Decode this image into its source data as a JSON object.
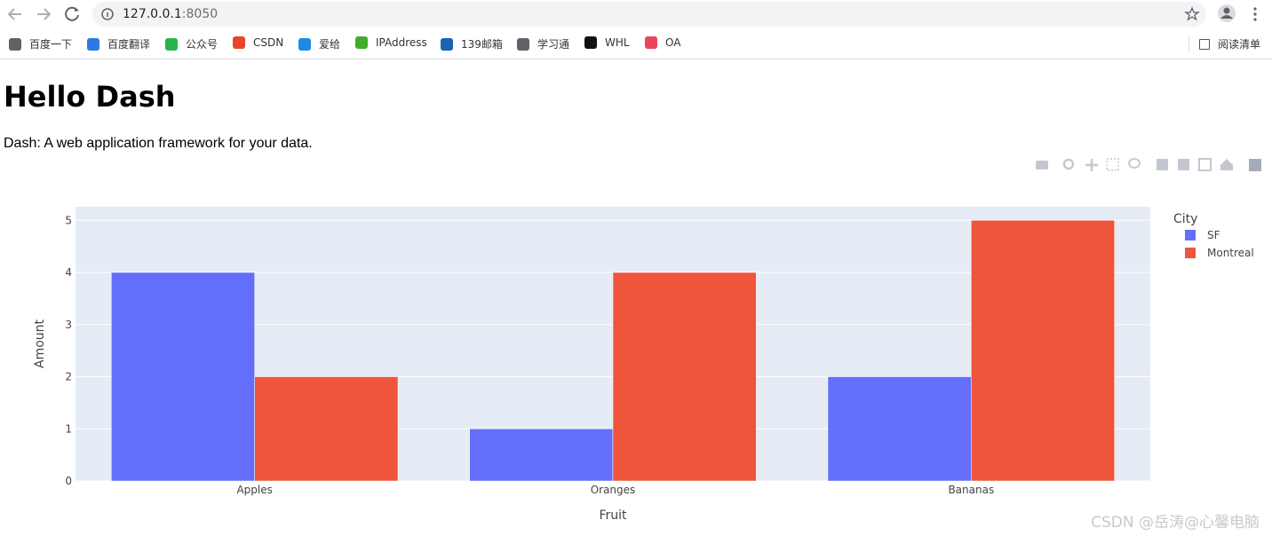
{
  "browser": {
    "url_host": "127.0.0.1",
    "url_port": ":8050",
    "bookmarks": [
      "百度一下",
      "百度翻译",
      "公众号",
      "CSDN",
      "爱给",
      "IPAddress",
      "139邮箱",
      "学习通",
      "WHL",
      "OA"
    ],
    "reading_list": "阅读清单"
  },
  "page": {
    "heading": "Hello Dash",
    "text": "Dash: A web application framework for your data."
  },
  "chart_data": {
    "type": "bar",
    "categories": [
      "Apples",
      "Oranges",
      "Bananas"
    ],
    "series": [
      {
        "name": "SF",
        "color": "#636efa",
        "values": [
          4,
          1,
          2
        ]
      },
      {
        "name": "Montreal",
        "color": "#ef553b",
        "values": [
          2,
          4,
          5
        ]
      }
    ],
    "legend_title": "City",
    "legend": "right",
    "x_label": "Fruit",
    "y_label": "Amount",
    "ylim": [
      0,
      5.26
    ],
    "yticks": [
      0,
      1,
      2,
      3,
      4,
      5
    ],
    "grid": true
  },
  "watermark": "CSDN @岳涛@心馨电脑"
}
